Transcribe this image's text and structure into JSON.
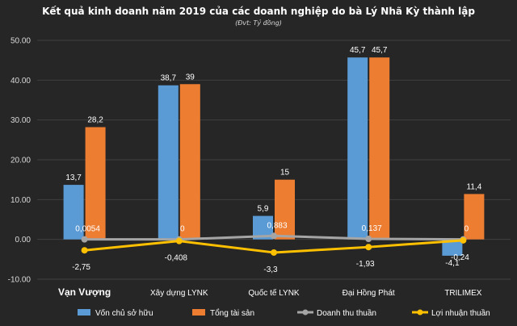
{
  "chart_data": {
    "type": "bar",
    "title": "Kết quả kinh doanh năm 2019 của các doanh nghiệp do bà Lý Nhã Kỳ thành lập",
    "subtitle": "(Đvt: Tỷ đồng)",
    "categories": [
      "Vạn Vượng",
      "Xây dựng LYNK",
      "Quốc tế LYNK",
      "Đại Hồng Phát",
      "TRILIMEX"
    ],
    "ylim": [
      -10,
      50
    ],
    "yticks": [
      "-10.00",
      "0.00",
      "10.00",
      "20.00",
      "30.00",
      "40.00",
      "50.00"
    ],
    "grid": true,
    "legend_position": "bottom",
    "series": [
      {
        "name": "Vốn chủ sở hữu",
        "kind": "bar",
        "color": "#5b9bd5",
        "values": [
          13.7,
          38.7,
          5.9,
          45.7,
          -4.1
        ],
        "labels": [
          "13,7",
          "38,7",
          "5,9",
          "45,7",
          "-4,1"
        ]
      },
      {
        "name": "Tổng tài sản",
        "kind": "bar",
        "color": "#ed7d31",
        "values": [
          28.2,
          39,
          15,
          45.7,
          11.4
        ],
        "labels": [
          "28,2",
          "39",
          "15",
          "45,7",
          "11,4"
        ]
      },
      {
        "name": "Doanh thu thuần",
        "kind": "line",
        "color": "#a5a5a5",
        "values": [
          0.0054,
          0,
          0.883,
          0.137,
          0
        ],
        "labels": [
          "0,0054",
          "0",
          "0,883",
          "0,137",
          "0"
        ]
      },
      {
        "name": "Lợi nhuận thuần",
        "kind": "line",
        "color": "#ffc000",
        "values": [
          -2.75,
          -0.408,
          -3.3,
          -1.93,
          -0.24
        ],
        "labels": [
          "-2,75",
          "-0,408",
          "-3,3",
          "-1,93",
          "-0,24"
        ]
      }
    ]
  }
}
